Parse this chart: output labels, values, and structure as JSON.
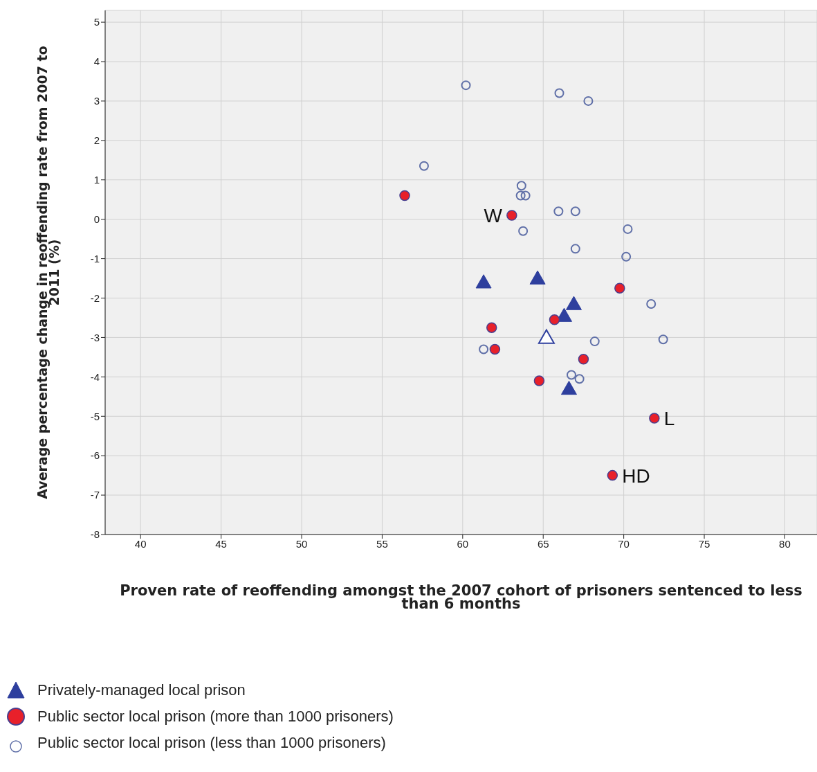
{
  "chart_data": {
    "type": "scatter",
    "xlabel": "Proven rate of reoffending amongst the 2007 cohort of prisoners sentenced to less than 6 months",
    "ylabel": "Average percentage change in reoffending rate from 2007 to 2011 (%)",
    "xlim": [
      37.8,
      82
    ],
    "xticks": [
      40,
      45,
      50,
      55,
      60,
      65,
      70,
      75,
      80
    ],
    "ylim": [
      -8,
      5.3
    ],
    "yticks": [
      -8,
      -7,
      -6,
      -5,
      -4,
      -3,
      -2,
      -1,
      0,
      1,
      2,
      3,
      4,
      5
    ],
    "grid": true,
    "legend": "bottom left",
    "series": [
      {
        "name": "Privately-managed local prison",
        "color": "#2e3f9e",
        "marker": "triangle",
        "x": [
          61.3,
          64.65,
          66.9,
          66.3,
          66.6
        ],
        "values": [
          -1.6,
          -1.5,
          -2.15,
          -2.45,
          -4.3
        ]
      },
      {
        "name": "Public sector local prison (more than 1000 prisoners)",
        "color": "#e8202a",
        "marker": "circle",
        "x": [
          56.4,
          63.05,
          69.75,
          61.8,
          62.0,
          65.7,
          67.5,
          64.75,
          71.9,
          69.3
        ],
        "values": [
          0.6,
          0.1,
          -1.75,
          -2.75,
          -3.3,
          -2.55,
          -3.55,
          -4.1,
          -5.05,
          -6.5
        ]
      },
      {
        "name": "Public sector local prison (less than 1000 prisoners)",
        "color": "#6070a8",
        "marker": "circle",
        "x": [
          60.2,
          66.0,
          67.8,
          57.6,
          63.65,
          63.6,
          63.9,
          65.95,
          67.0,
          63.75,
          70.25,
          67.0,
          70.15,
          71.7,
          72.45,
          68.2,
          61.3,
          66.75,
          67.25
        ],
        "values": [
          3.4,
          3.2,
          3.0,
          1.35,
          0.85,
          0.6,
          0.6,
          0.2,
          0.2,
          -0.3,
          -0.25,
          -0.75,
          -0.95,
          -2.15,
          -3.05,
          -3.1,
          -3.3,
          -3.95,
          -4.05
        ]
      },
      {
        "color": "#2e3f9e",
        "marker": "triangle",
        "x": [
          65.2
        ],
        "values": [
          -3.0
        ]
      }
    ],
    "annotations": [
      {
        "text": "W",
        "x": 63.05,
        "y": 0.1
      },
      {
        "text": "L",
        "x": 71.9,
        "y": -5.05
      },
      {
        "text": "HD",
        "x": 69.3,
        "y": -6.5
      }
    ]
  }
}
